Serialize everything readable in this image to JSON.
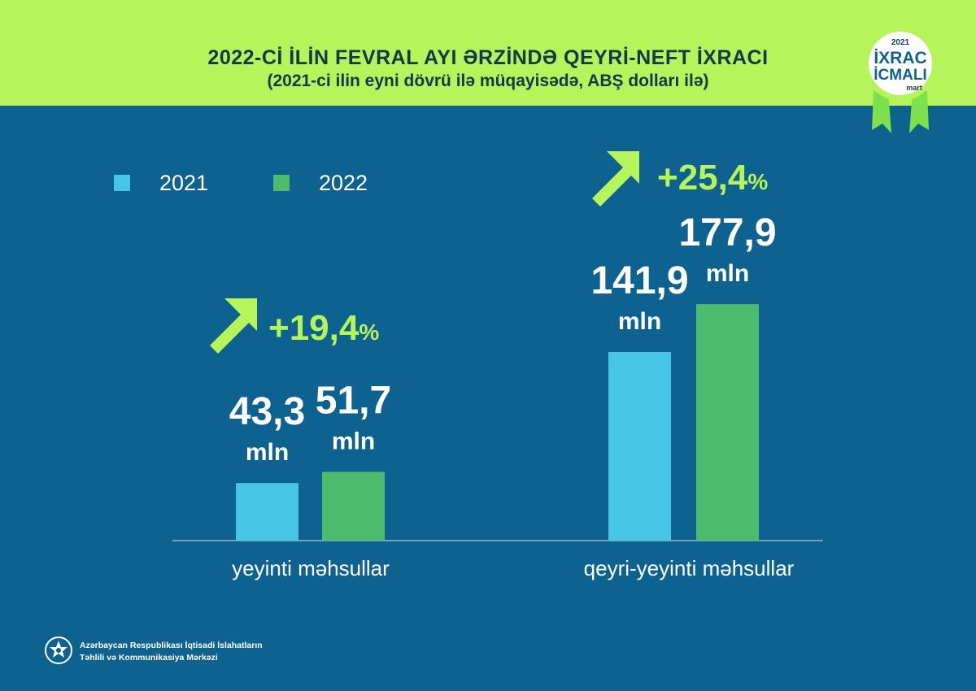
{
  "header": {
    "title": "2022-Cİ İLİN FEVRAL AYI ƏRZİNDƏ QEYRİ-NEFT İXRACI",
    "subtitle": "(2021-ci ilin eyni dövrü ilə müqayisədə, ABŞ dolları ilə)"
  },
  "badge": {
    "year": "2021",
    "line1": "İXRAC",
    "line2": "İCMALI",
    "month": "mart"
  },
  "legend": [
    {
      "label": "2021",
      "color": "#46c6e2"
    },
    {
      "label": "2022",
      "color": "#4dba6d"
    }
  ],
  "chart_data": {
    "type": "bar",
    "categories": [
      "yeyinti məhsullar",
      "qeyri-yeyinti məhsullar"
    ],
    "series": [
      {
        "name": "2021",
        "color": "#46c6e2",
        "values": [
          43.3,
          141.9
        ],
        "labels": [
          "43,3",
          "141,9"
        ]
      },
      {
        "name": "2022",
        "color": "#4dba6d",
        "values": [
          51.7,
          177.9
        ],
        "labels": [
          "51,7",
          "177,9"
        ]
      }
    ],
    "unit": "mln",
    "growth": [
      {
        "text": "+19,4",
        "suffix": "%"
      },
      {
        "text": "+25,4",
        "suffix": "%"
      }
    ],
    "growth_color": "#b5f45a",
    "legend_position": "top-left",
    "grid": false
  },
  "footer": {
    "line1": "Azərbaycan Respublikası İqtisadi İslahatların",
    "line2": "Təhlili və Kommunikasiya Mərkəzi"
  }
}
